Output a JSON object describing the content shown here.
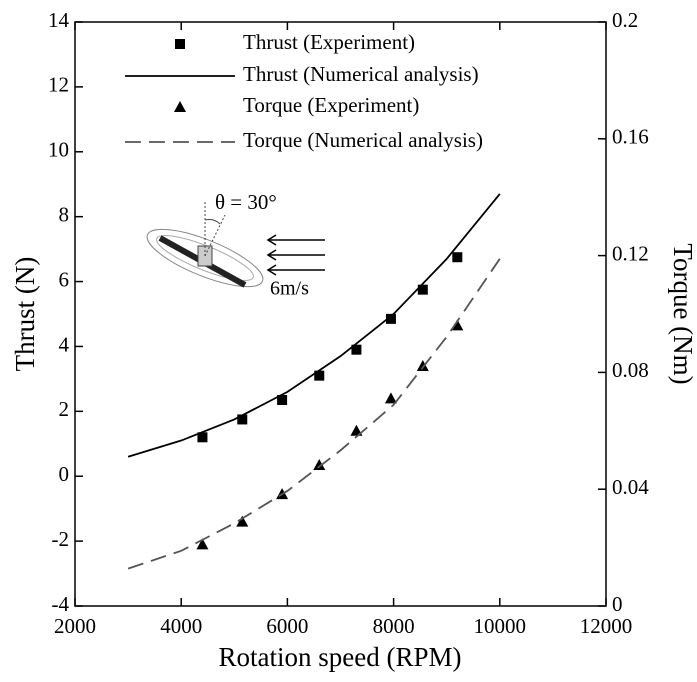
{
  "chart_data": {
    "type": "line",
    "x_label": "Rotation speed (RPM)",
    "y_label": "Thrust (N)",
    "y2_label": "Torque (Nm)",
    "xlim": [
      2000,
      12000
    ],
    "xticks": [
      2000,
      4000,
      6000,
      8000,
      10000,
      12000
    ],
    "ylim": [
      -4,
      14
    ],
    "yticks": [
      -4,
      -2,
      0,
      2,
      4,
      6,
      8,
      10,
      12,
      14
    ],
    "y2lim": [
      0,
      0.2
    ],
    "y2ticks": [
      0,
      0.04,
      0.08,
      0.12,
      0.16,
      0.2
    ],
    "annotations": [
      "θ = 30°",
      "6m/s"
    ],
    "series": [
      {
        "name": "Thrust (Experiment)",
        "style": "square",
        "color": "#000000",
        "x": [
          4400,
          5150,
          5900,
          6600,
          7300,
          7950,
          8550,
          9200
        ],
        "values": [
          1.2,
          1.75,
          2.35,
          3.1,
          3.9,
          4.85,
          5.75,
          6.75
        ]
      },
      {
        "name": "Thrust (Numerical analysis)",
        "style": "solid",
        "color": "#000000",
        "x": [
          3000,
          4000,
          5000,
          6000,
          7000,
          8000,
          9000,
          10000
        ],
        "values": [
          0.6,
          1.1,
          1.75,
          2.6,
          3.7,
          5.0,
          6.7,
          8.7
        ]
      },
      {
        "name": "Torque (Experiment)",
        "style": "triangle",
        "color": "#000000",
        "axis": "y2",
        "x": [
          4400,
          5150,
          5900,
          6600,
          7300,
          7950,
          8550,
          9200
        ],
        "values": [
          0.0211,
          0.0289,
          0.0383,
          0.0483,
          0.06,
          0.0711,
          0.0822,
          0.0961
        ]
      },
      {
        "name": "Torque (Numerical analysis)",
        "style": "dashed",
        "color": "#555555",
        "axis": "y2",
        "x": [
          3000,
          4000,
          5000,
          6000,
          7000,
          8000,
          9000,
          10000
        ],
        "values": [
          0.0128,
          0.0189,
          0.0283,
          0.0394,
          0.0533,
          0.0689,
          0.0922,
          0.1189
        ]
      }
    ]
  }
}
